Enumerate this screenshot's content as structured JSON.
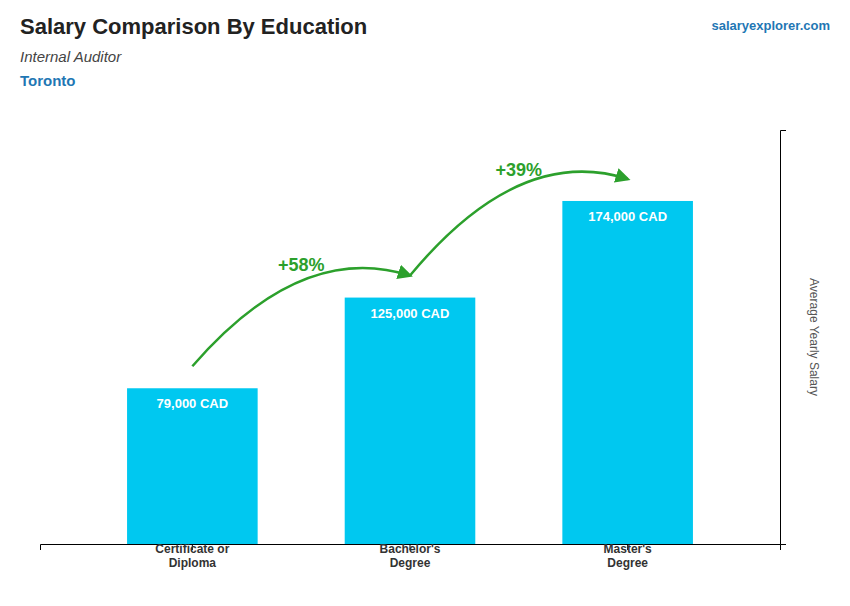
{
  "chart_data": {
    "type": "bar",
    "title": "Salary Comparison By Education",
    "subtitle": [
      "Internal Auditor",
      "Toronto"
    ],
    "categories": [
      "Certificate or\nDiploma",
      "Bachelor's\nDegree",
      "Master's\nDegree"
    ],
    "values": [
      79000,
      125000,
      174000
    ],
    "value_labels": [
      "79,000 CAD",
      "125,000 CAD",
      "174,000 CAD"
    ],
    "data_labels": true,
    "color": "#00c8f0",
    "ylabel": "Average Yearly Salary",
    "ylim": [
      0,
      210000
    ],
    "tick_labels": "x",
    "grid": false,
    "annotations": [
      "+58%",
      "+39%"
    ],
    "source": "salaryexplorer.com"
  }
}
